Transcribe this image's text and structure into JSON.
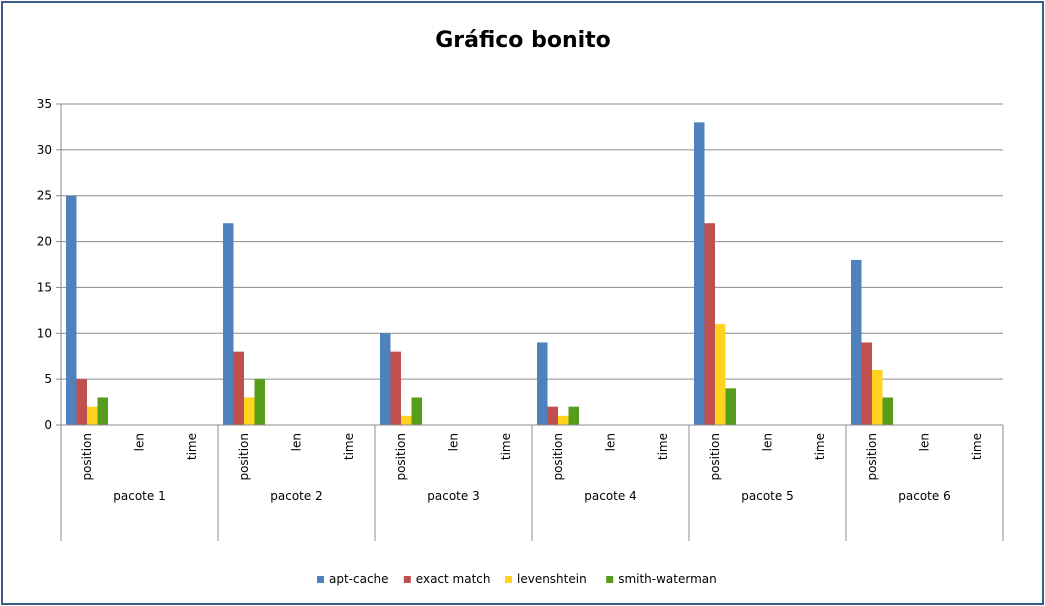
{
  "chart_data": {
    "type": "bar",
    "title": "Gráfico bonito",
    "groups": [
      "pacote 1",
      "pacote 2",
      "pacote 3",
      "pacote 4",
      "pacote 5",
      "pacote 6"
    ],
    "subcategories": [
      "position",
      "len",
      "time"
    ],
    "y_ticks": [
      "0",
      "5",
      "10",
      "15",
      "20",
      "25",
      "30",
      "35"
    ],
    "ylim": [
      0,
      35
    ],
    "grid": true,
    "legend_position": "bottom",
    "series": [
      {
        "name": "apt-cache",
        "color": "#4f81bd",
        "values": [
          25,
          0,
          0,
          22,
          0,
          0,
          10,
          0,
          0,
          9,
          0,
          0,
          33,
          0,
          0,
          18,
          0,
          0
        ]
      },
      {
        "name": "exact match",
        "color": "#c0504d",
        "values": [
          5,
          0,
          0,
          8,
          0,
          0,
          8,
          0,
          0,
          2,
          0,
          0,
          22,
          0,
          0,
          9,
          0,
          0
        ]
      },
      {
        "name": "levenshtein",
        "color": "#ffd320",
        "values": [
          2,
          0,
          0,
          3,
          0,
          0,
          1,
          0,
          0,
          1,
          0,
          0,
          11,
          0,
          0,
          6,
          0,
          0
        ]
      },
      {
        "name": "smith-waterman",
        "color": "#579d1c",
        "values": [
          3,
          0,
          0,
          5,
          0,
          0,
          3,
          0,
          0,
          2,
          0,
          0,
          4,
          0,
          0,
          3,
          0,
          0
        ]
      }
    ]
  }
}
